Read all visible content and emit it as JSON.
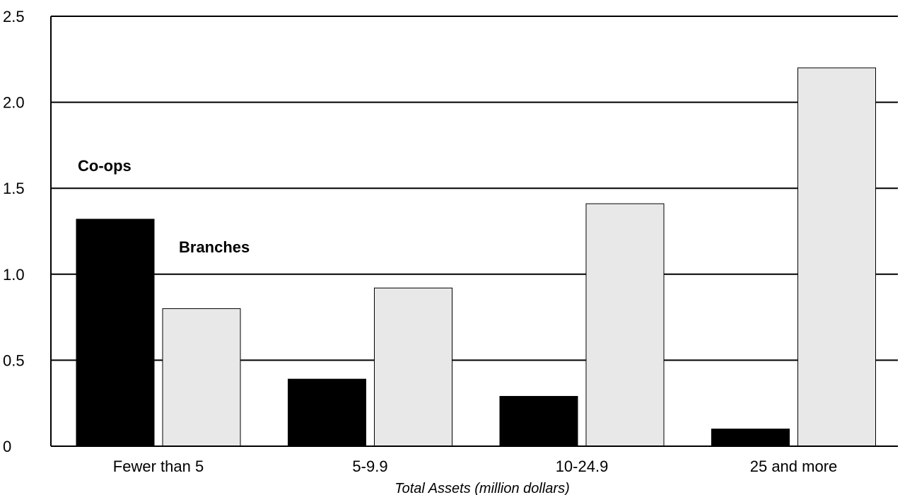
{
  "chart_data": {
    "type": "bar",
    "title": "",
    "xlabel": "Total Assets (million dollars)",
    "ylabel": "",
    "categories": [
      "Fewer than 5",
      "5-9.9",
      "10-24.9",
      "25 and more"
    ],
    "series": [
      {
        "name": "Branches",
        "values": [
          1.32,
          0.39,
          0.29,
          0.1
        ],
        "color": "#000000"
      },
      {
        "name": "Co-ops",
        "values": [
          0.8,
          0.92,
          1.41,
          2.2
        ],
        "color": "#e8e8e8"
      }
    ],
    "y_ticks": [
      "0",
      "0.5",
      "1.0",
      "1.5",
      "2.0",
      "2.5"
    ],
    "y_tick_values": [
      0,
      0.5,
      1.0,
      1.5,
      2.0,
      2.5
    ],
    "ylim": [
      0,
      2.5
    ],
    "grid": true,
    "legend": "inline labels"
  }
}
